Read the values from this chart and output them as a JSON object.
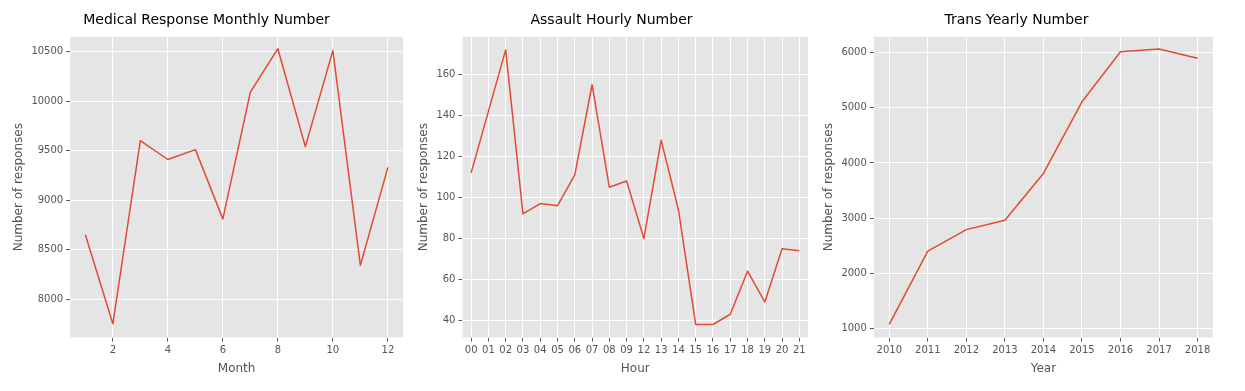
{
  "chart_data": [
    {
      "type": "line",
      "title": "Medical Response Monthly Number",
      "xlabel": "Month",
      "ylabel": "Number of responses",
      "x": [
        1,
        2,
        3,
        4,
        5,
        6,
        7,
        8,
        9,
        10,
        11,
        12
      ],
      "series": [
        {
          "color": "#e24a33",
          "values": [
            8650,
            7750,
            9600,
            9410,
            9510,
            8810,
            10090,
            10530,
            9540,
            10510,
            8340,
            9330
          ]
        }
      ],
      "xlim": [
        0.45,
        12.55
      ],
      "xticks": [
        2,
        4,
        6,
        8,
        10,
        12
      ],
      "ylim": [
        7610,
        10650
      ],
      "yticks": [
        8000,
        8500,
        9000,
        9500,
        10000,
        10500
      ],
      "grid": true
    },
    {
      "type": "line",
      "title": "Assault Hourly Number",
      "xlabel": "Hour",
      "ylabel": "Number of responses",
      "categories": [
        "00",
        "01",
        "02",
        "03",
        "04",
        "05",
        "06",
        "07",
        "08",
        "09",
        "12",
        "13",
        "14",
        "15",
        "16",
        "17",
        "18",
        "19",
        "20",
        "21"
      ],
      "series": [
        {
          "color": "#e24a33",
          "values": [
            112,
            142,
            172,
            92,
            97,
            96,
            111,
            155,
            105,
            108,
            80,
            128,
            94,
            38,
            38,
            43,
            64,
            49,
            75,
            74
          ]
        }
      ],
      "ylim": [
        31.6,
        178.4
      ],
      "yticks": [
        40,
        60,
        80,
        100,
        120,
        140,
        160
      ],
      "grid": true
    },
    {
      "type": "line",
      "title": "Trans Yearly Number",
      "xlabel": "Year",
      "ylabel": "Number of responses",
      "x": [
        2010,
        2011,
        2012,
        2013,
        2014,
        2015,
        2016,
        2017,
        2018
      ],
      "series": [
        {
          "color": "#e24a33",
          "values": [
            1070,
            2400,
            2790,
            2960,
            3810,
            5110,
            6020,
            6070,
            5900
          ]
        }
      ],
      "xlim": [
        2009.6,
        2018.4
      ],
      "xticks": [
        2010,
        2011,
        2012,
        2013,
        2014,
        2015,
        2016,
        2017,
        2018
      ],
      "ylim": [
        830,
        6290
      ],
      "yticks": [
        1000,
        2000,
        3000,
        4000,
        5000,
        6000
      ],
      "grid": true
    }
  ]
}
